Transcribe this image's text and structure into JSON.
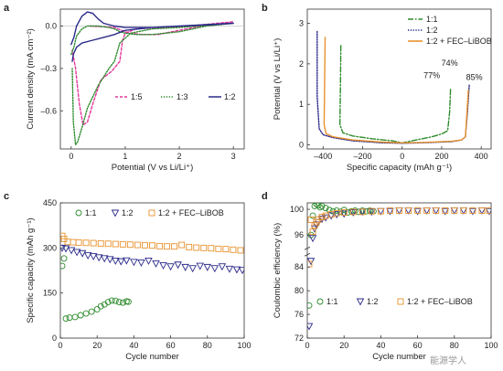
{
  "watermark": "能源学人",
  "chart_data": [
    {
      "type": "line",
      "panel_label": "a",
      "xlabel": "Potential (V vs Li/Li⁺)",
      "ylabel": "Current density (mA cm⁻²)",
      "xlim": [
        -0.2,
        3.2
      ],
      "ylim": [
        -0.87,
        0.12
      ],
      "xticks": [
        0,
        1,
        2,
        3
      ],
      "yticks": [
        0.0,
        -0.3,
        -0.6
      ],
      "ytick_labels": [
        "0.0",
        "–0.3",
        "–0.6"
      ],
      "legend_position": "lower-right",
      "series": [
        {
          "name": "1:5",
          "color": "#e3379a",
          "dash": "3,2",
          "x": [
            0.35,
            0.6,
            0.8,
            1.0,
            1.1,
            1.3,
            1.6,
            2.0,
            2.4,
            2.8,
            3.0,
            2.7,
            2.2,
            1.6,
            1.2,
            1.0,
            0.95,
            0.9,
            0.75,
            0.55,
            0.4,
            0.3,
            0.22,
            0.15,
            0.08,
            0.02
          ],
          "y": [
            0.0,
            -0.005,
            -0.01,
            -0.04,
            -0.05,
            -0.06,
            -0.06,
            -0.03,
            0.0,
            0.02,
            0.03,
            0.02,
            0.0,
            -0.01,
            -0.02,
            -0.05,
            -0.1,
            -0.25,
            -0.32,
            -0.38,
            -0.55,
            -0.68,
            -0.7,
            -0.55,
            -0.3,
            -0.17
          ]
        },
        {
          "name": "1:3",
          "color": "#2e8b2e",
          "dash": "1.3,1.6",
          "x": [
            0.0,
            0.05,
            0.1,
            0.2,
            0.3,
            0.5,
            0.7,
            0.8,
            0.9,
            1.0,
            1.2,
            1.5,
            2.0,
            2.5,
            3.0,
            2.6,
            2.0,
            1.5,
            1.1,
            0.9,
            0.8,
            0.7,
            0.5,
            0.3,
            0.2,
            0.12,
            0.08,
            0.04,
            0.02
          ],
          "y": [
            -0.2,
            -0.15,
            -0.07,
            -0.02,
            0.0,
            0.0,
            -0.01,
            -0.02,
            -0.04,
            -0.05,
            -0.06,
            -0.06,
            -0.04,
            0.0,
            0.02,
            0.01,
            -0.01,
            -0.02,
            -0.05,
            -0.12,
            -0.25,
            -0.3,
            -0.42,
            -0.58,
            -0.72,
            -0.82,
            -0.84,
            -0.68,
            -0.3
          ]
        },
        {
          "name": "1:2",
          "color": "#2a2a8a",
          "dash": "",
          "x": [
            0.0,
            0.05,
            0.1,
            0.2,
            0.3,
            0.4,
            0.5,
            0.6,
            0.8,
            1.0,
            1.5,
            2.0,
            2.5,
            3.0,
            2.6,
            2.0,
            1.5,
            1.0,
            0.8,
            0.6,
            0.4,
            0.2,
            0.1,
            0.04,
            0.02
          ],
          "y": [
            -0.13,
            -0.08,
            0.0,
            0.07,
            0.1,
            0.09,
            0.05,
            0.02,
            0.0,
            -0.01,
            -0.01,
            0.0,
            0.01,
            0.02,
            0.01,
            0.0,
            -0.01,
            -0.03,
            -0.06,
            -0.08,
            -0.1,
            -0.12,
            -0.15,
            -0.2,
            -0.25
          ]
        }
      ]
    },
    {
      "type": "line",
      "panel_label": "b",
      "xlabel": "Specific capacity (mAh g⁻¹)",
      "ylabel": "Potential (V vs Li/Li⁺)",
      "xlim": [
        -480,
        450
      ],
      "ylim": [
        -0.1,
        3.35
      ],
      "xticks": [
        -400,
        -200,
        0,
        200,
        400
      ],
      "xtick_labels": [
        "–400",
        "–200",
        "0",
        "200",
        "400"
      ],
      "yticks": [
        0,
        1,
        2,
        3
      ],
      "legend_position": "top-right",
      "annotations": [
        {
          "text": "77%",
          "x": 150,
          "y": 1.65
        },
        {
          "text": "74%",
          "x": 240,
          "y": 1.95
        },
        {
          "text": "85%",
          "x": 365,
          "y": 1.6
        }
      ],
      "series": [
        {
          "name": "1:1",
          "color": "#2e8b2e",
          "dash": "6,2,1.5,2",
          "x": [
            -310,
            -312,
            -315,
            -300,
            -250,
            -150,
            -50,
            0,
            0,
            50,
            150,
            200,
            230,
            240,
            245
          ],
          "y": [
            2.45,
            1.5,
            0.5,
            0.3,
            0.22,
            0.15,
            0.1,
            0.05,
            0.05,
            0.1,
            0.2,
            0.27,
            0.35,
            0.8,
            1.4
          ]
        },
        {
          "name": "1:2",
          "color": "#2a2a8a",
          "dash": "1.3,1.5",
          "x": [
            -430,
            -430,
            -420,
            -400,
            -350,
            -250,
            -100,
            0,
            0,
            100,
            250,
            300,
            320,
            330,
            340
          ],
          "y": [
            2.8,
            1.2,
            0.4,
            0.25,
            0.18,
            0.1,
            0.05,
            0.04,
            0.04,
            0.05,
            0.08,
            0.12,
            0.2,
            0.8,
            1.5
          ]
        },
        {
          "name": "1:2 + FEC–LiBOB",
          "color": "#e8922e",
          "dash": "",
          "x": [
            -390,
            -393,
            -395,
            -385,
            -350,
            -250,
            -100,
            0,
            0,
            100,
            250,
            300,
            320,
            328,
            335
          ],
          "y": [
            2.65,
            1.2,
            0.5,
            0.28,
            0.2,
            0.12,
            0.07,
            0.05,
            0.05,
            0.06,
            0.09,
            0.12,
            0.2,
            0.8,
            1.35
          ]
        }
      ]
    },
    {
      "type": "scatter",
      "panel_label": "c",
      "xlabel": "Cycle number",
      "ylabel": "Specific capacity (mAh g⁻¹)",
      "xlim": [
        0,
        100
      ],
      "ylim": [
        0,
        450
      ],
      "xticks": [
        0,
        20,
        40,
        60,
        80,
        100
      ],
      "yticks": [
        0,
        150,
        300,
        450
      ],
      "legend_position": "top",
      "series": [
        {
          "name": "1:1",
          "color": "#2e8b2e",
          "marker": "circle",
          "x": [
            1,
            2,
            3,
            5,
            8,
            11,
            14,
            17,
            20,
            22,
            24,
            26,
            28,
            30,
            32,
            34,
            36,
            37
          ],
          "y": [
            240,
            265,
            65,
            68,
            70,
            76,
            82,
            88,
            96,
            106,
            112,
            120,
            125,
            124,
            120,
            118,
            122,
            121
          ]
        },
        {
          "name": "1:2",
          "color": "#2a2a8a",
          "marker": "triangle-down",
          "x": [
            1,
            3,
            6,
            9,
            12,
            15,
            18,
            21,
            24,
            27,
            30,
            33,
            36,
            40,
            44,
            48,
            52,
            56,
            60,
            64,
            68,
            72,
            76,
            80,
            84,
            88,
            92,
            96,
            99
          ],
          "y": [
            300,
            298,
            292,
            286,
            282,
            275,
            272,
            268,
            265,
            262,
            257,
            255,
            258,
            253,
            251,
            257,
            248,
            242,
            238,
            244,
            236,
            232,
            240,
            236,
            232,
            238,
            230,
            228,
            226
          ]
        },
        {
          "name": "1:2 + FEC–LiBOB",
          "color": "#e8922e",
          "marker": "square",
          "x": [
            1,
            2,
            4,
            7,
            10,
            14,
            18,
            22,
            26,
            30,
            34,
            38,
            42,
            46,
            50,
            54,
            58,
            62,
            66,
            70,
            74,
            78,
            82,
            86,
            90,
            94,
            98
          ],
          "y": [
            340,
            330,
            320,
            319,
            318,
            317,
            316,
            315,
            314,
            313,
            312,
            311,
            310,
            309,
            308,
            306,
            305,
            305,
            310,
            303,
            301,
            300,
            299,
            297,
            296,
            294,
            292
          ]
        }
      ]
    },
    {
      "type": "scatter",
      "panel_label": "d",
      "xlabel": "Cycle number",
      "ylabel": "Coulombic efficiency (%)",
      "xlim": [
        0,
        100
      ],
      "ylim": [
        72,
        101
      ],
      "ybreak": true,
      "xticks": [
        0,
        20,
        40,
        60,
        80,
        100
      ],
      "yticks": [
        72,
        76,
        80,
        84,
        96,
        100
      ],
      "legend_position": "bottom",
      "series": [
        {
          "name": "1:1",
          "color": "#2e8b2e",
          "marker": "circle",
          "x": [
            1,
            2,
            3,
            4,
            5,
            6,
            7,
            8,
            10,
            12,
            14,
            16,
            18,
            20,
            22,
            24,
            26,
            28,
            30,
            32,
            34,
            36
          ],
          "y": [
            77.5,
            96.0,
            99.0,
            100.5,
            100.8,
            100.6,
            100.3,
            100.5,
            100.2,
            99.9,
            99.7,
            99.8,
            99.6,
            99.9,
            99.5,
            99.7,
            99.8,
            99.6,
            99.8,
            99.7,
            99.8,
            99.7
          ]
        },
        {
          "name": "1:2",
          "color": "#2a2a8a",
          "marker": "triangle-down",
          "x": [
            1,
            2,
            3,
            4,
            5,
            6,
            8,
            10,
            13,
            16,
            20,
            25,
            30,
            35,
            40,
            45,
            50,
            55,
            60,
            65,
            70,
            75,
            80,
            85,
            90,
            95,
            99
          ],
          "y": [
            74.0,
            85.0,
            95.5,
            97.0,
            97.6,
            98.0,
            98.5,
            98.7,
            99.0,
            99.2,
            99.3,
            99.5,
            99.6,
            99.6,
            99.7,
            99.7,
            99.8,
            99.8,
            99.7,
            99.8,
            99.8,
            99.7,
            99.8,
            99.8,
            99.7,
            99.8,
            99.7
          ]
        },
        {
          "name": "1:2 + FEC–LiBOB",
          "color": "#e8922e",
          "marker": "square",
          "x": [
            1,
            2,
            3,
            4,
            5,
            6,
            8,
            10,
            13,
            16,
            20,
            25,
            30,
            35,
            40,
            45,
            50,
            55,
            60,
            65,
            70,
            75,
            80,
            85,
            90,
            95,
            99
          ],
          "y": [
            84.5,
            92.0,
            96.5,
            97.5,
            98.0,
            98.4,
            98.8,
            99.0,
            99.2,
            99.4,
            99.5,
            99.6,
            99.6,
            99.7,
            99.7,
            99.8,
            99.8,
            99.8,
            99.8,
            99.8,
            99.8,
            99.8,
            99.8,
            99.8,
            99.8,
            99.8,
            99.8
          ]
        }
      ]
    }
  ]
}
